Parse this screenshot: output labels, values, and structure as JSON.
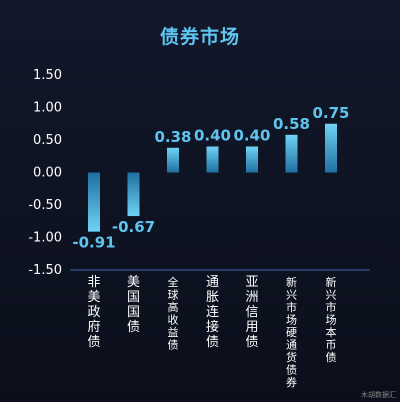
{
  "chart_data": {
    "type": "bar",
    "title": "债券市场",
    "categories": [
      "非美政府债",
      "美国国债",
      "全球高收益债",
      "通胀连接债",
      "亚洲信用债",
      "新兴市场硬通货债券",
      "新兴市场本币债"
    ],
    "values": [
      -0.91,
      -0.67,
      0.38,
      0.4,
      0.4,
      0.58,
      0.75
    ],
    "value_labels": [
      "-0.91",
      "-0.67",
      "0.38",
      "0.40",
      "0.40",
      "0.58",
      "0.75"
    ],
    "yticks": [
      "1.50",
      "1.00",
      "0.50",
      "0.00",
      "-0.50",
      "-1.00",
      "-1.50"
    ],
    "ylim": [
      -1.5,
      1.5
    ],
    "xlabel": "",
    "ylabel": "",
    "grid": false,
    "colors": {
      "bar_light": "#6fd3f5",
      "bar_dark": "#1e6fa0",
      "label": "#5fc4f0",
      "axis": "#2f4a7a"
    }
  },
  "watermark": "木胡数据汇"
}
